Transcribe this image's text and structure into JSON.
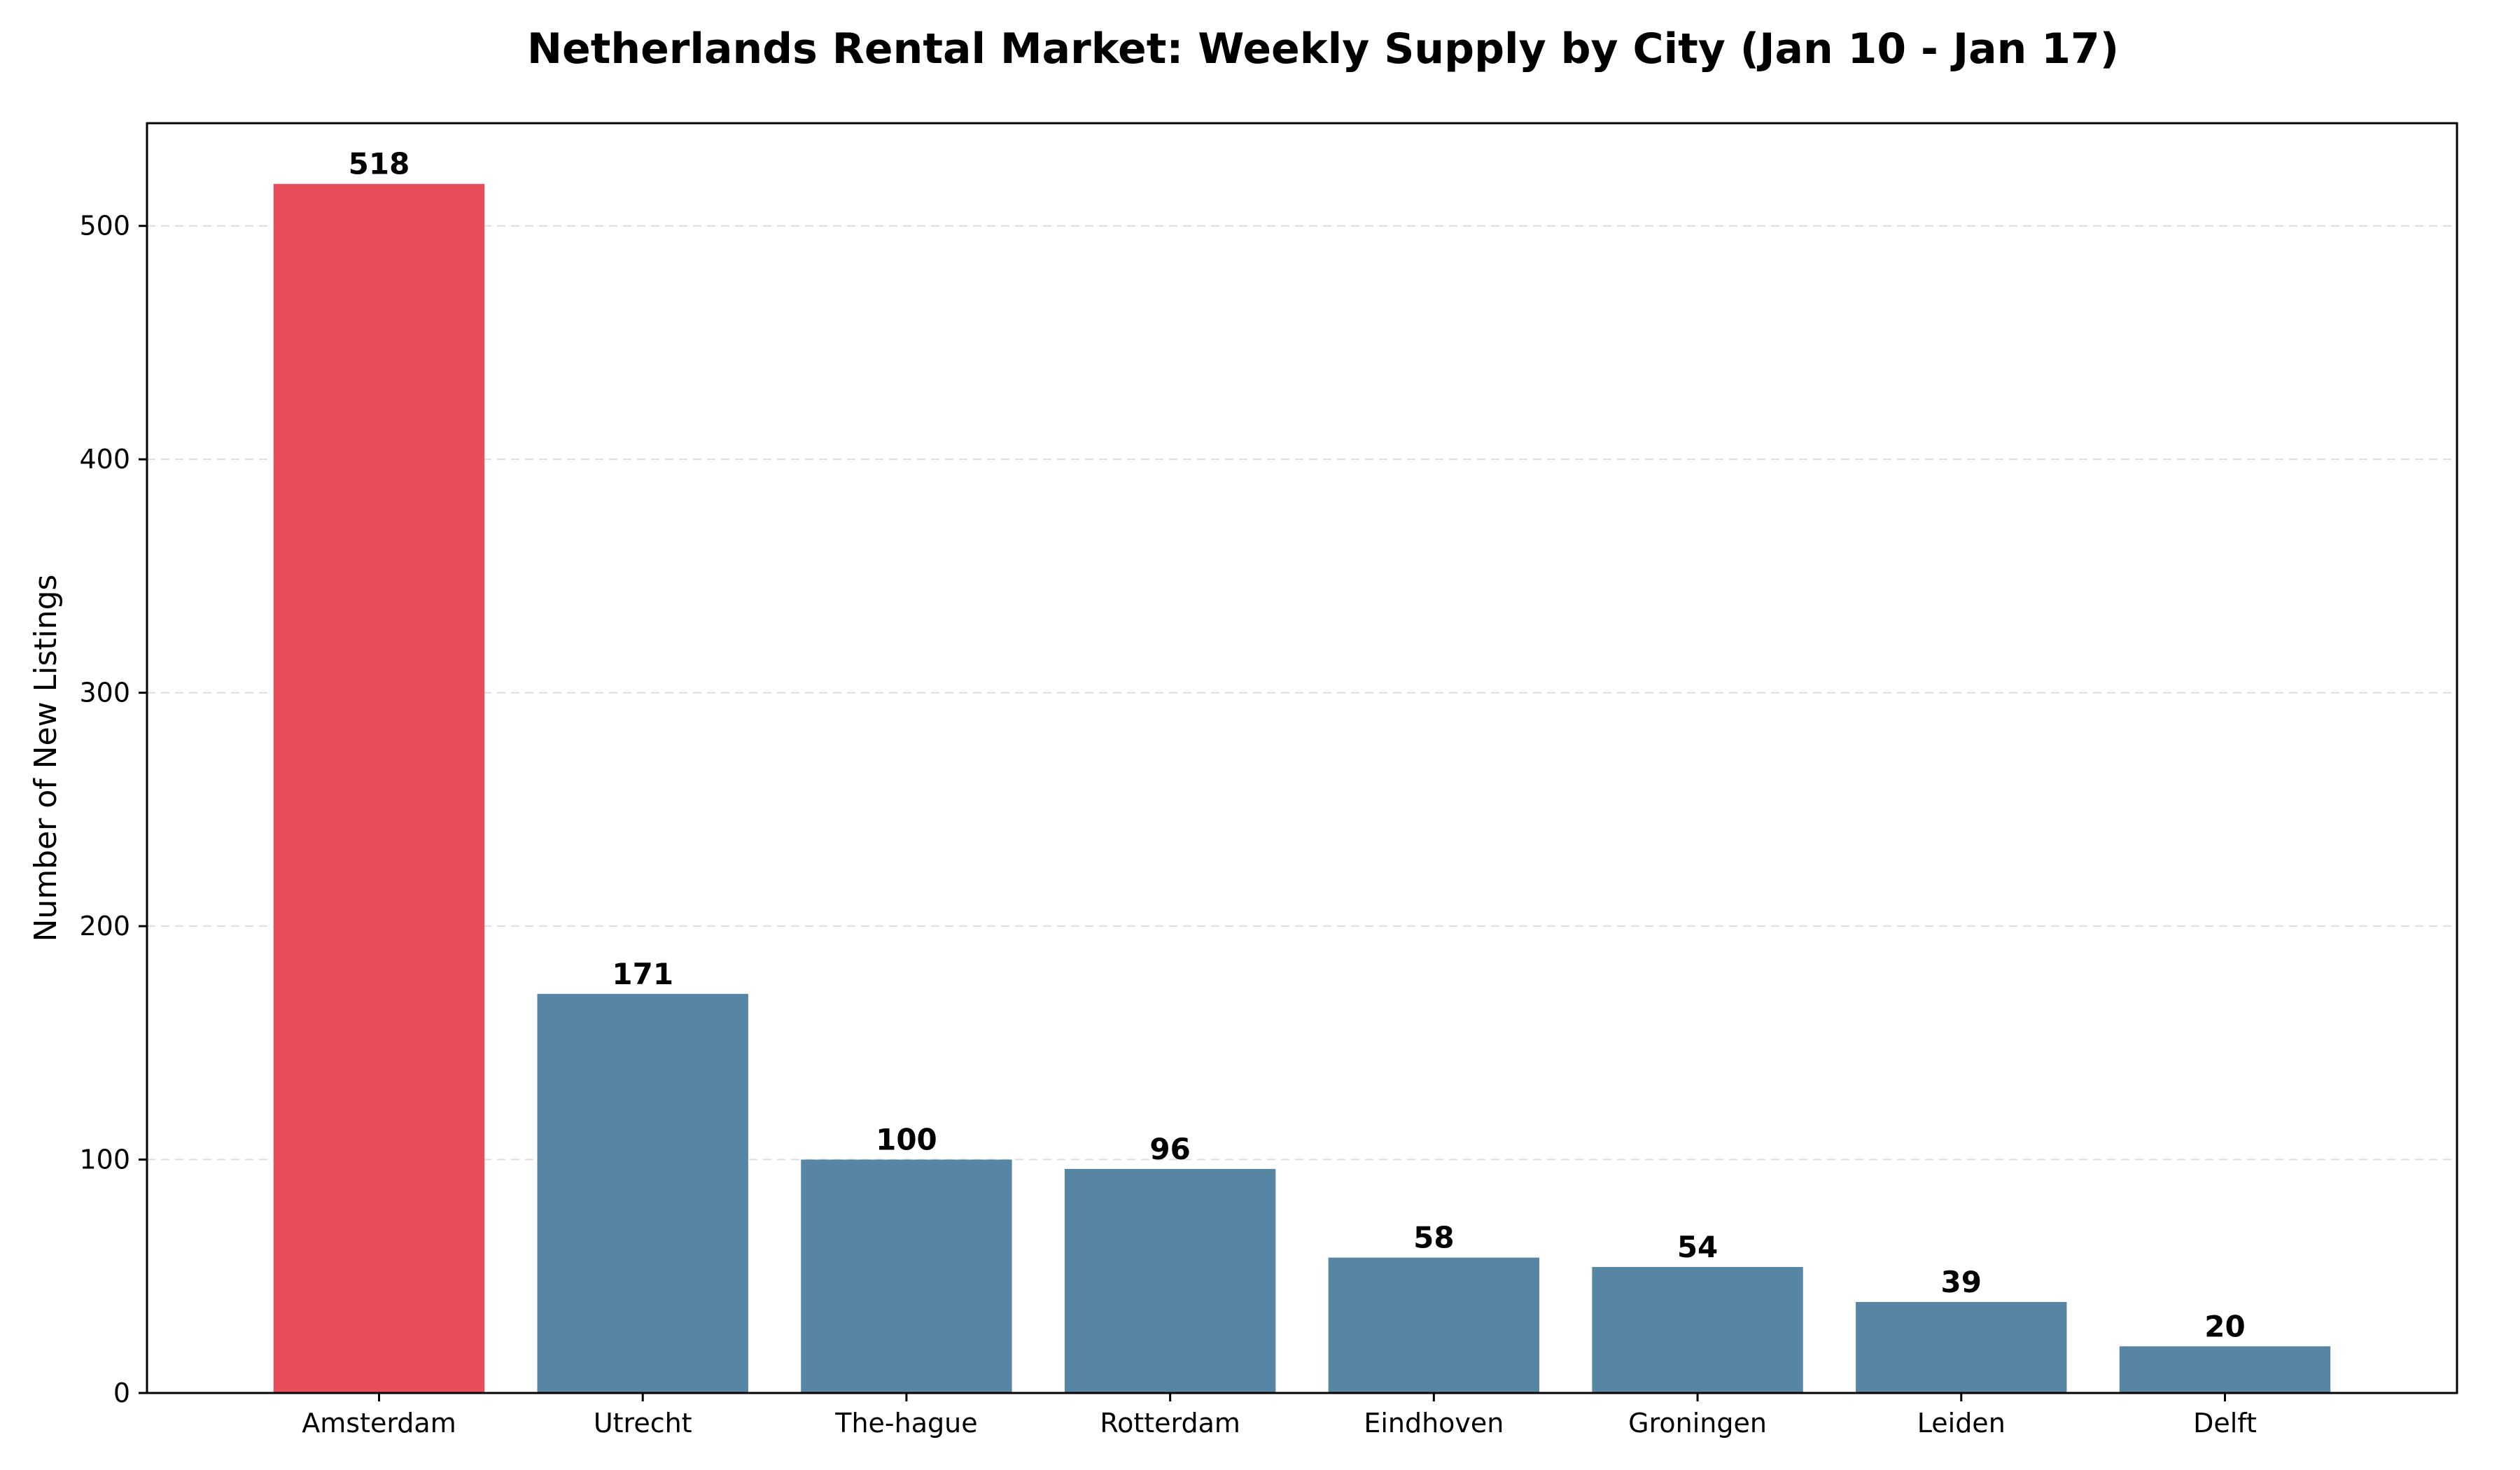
{
  "chart_data": {
    "type": "bar",
    "title": "Netherlands Rental Market: Weekly Supply by City (Jan 10 - Jan 17)",
    "xlabel": "",
    "ylabel": "Number of New Listings",
    "categories": [
      "Amsterdam",
      "Utrecht",
      "The-hague",
      "Rotterdam",
      "Eindhoven",
      "Groningen",
      "Leiden",
      "Delft"
    ],
    "values": [
      518,
      171,
      100,
      96,
      58,
      54,
      39,
      20
    ],
    "value_labels": [
      "518",
      "171",
      "100",
      "96",
      "58",
      "54",
      "39",
      "20"
    ],
    "ylim": [
      0,
      544
    ],
    "yticks": [
      0,
      100,
      200,
      300,
      400,
      500
    ],
    "ytick_labels": [
      "0",
      "100",
      "200",
      "300",
      "400",
      "500"
    ],
    "grid": true,
    "grid_axis": "y",
    "colors": {
      "highlight": "#e84d5b",
      "default": "#5786a5",
      "highlight_category": "Amsterdam",
      "grid": "#dddddd"
    }
  }
}
